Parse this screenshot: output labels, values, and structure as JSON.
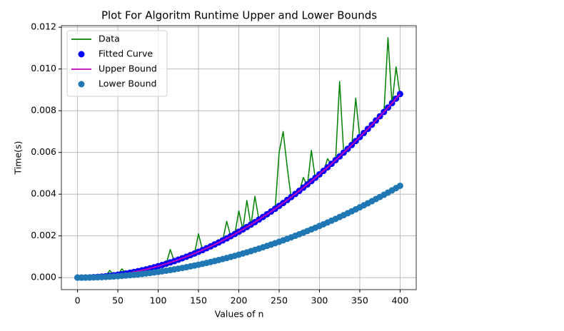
{
  "chart_data": {
    "type": "line",
    "title": "Plot For Algoritm Runtime Upper and Lower Bounds",
    "x_label": "Values of n",
    "y_label": "Time(s)",
    "x": [
      0,
      5,
      10,
      15,
      20,
      25,
      30,
      35,
      40,
      45,
      50,
      55,
      60,
      65,
      70,
      75,
      80,
      85,
      90,
      95,
      100,
      105,
      110,
      115,
      120,
      125,
      130,
      135,
      140,
      145,
      150,
      155,
      160,
      165,
      170,
      175,
      180,
      185,
      190,
      195,
      200,
      205,
      210,
      215,
      220,
      225,
      230,
      235,
      240,
      245,
      250,
      255,
      260,
      265,
      270,
      275,
      280,
      285,
      290,
      295,
      300,
      305,
      310,
      315,
      320,
      325,
      330,
      335,
      340,
      345,
      350,
      355,
      360,
      365,
      370,
      375,
      380,
      385,
      390,
      395,
      400
    ],
    "series": [
      {
        "name": "Data",
        "color": "#008000",
        "mode": "line",
        "values": [
          0,
          1e-06,
          6e-06,
          1.2e-05,
          2.2e-05,
          3.4e-05,
          5e-05,
          7e-05,
          0.00035,
          0.00011,
          0.00014,
          0.00042,
          0.0002,
          0.00023,
          0.00027,
          0.00031,
          0.00035,
          0.0004,
          0.00044,
          0.0005,
          0.00055,
          0.0006,
          0.00066,
          0.00135,
          0.00079,
          0.00085,
          0.00092,
          0.001,
          0.00107,
          0.00115,
          0.0021,
          0.00131,
          0.0014,
          0.00148,
          0.00158,
          0.00167,
          0.00177,
          0.0027,
          0.00197,
          0.00207,
          0.0032,
          0.0023,
          0.0037,
          0.0025,
          0.0039,
          0.00275,
          0.00288,
          0.003,
          0.00314,
          0.00327,
          0.006,
          0.007,
          0.0053,
          0.0038,
          0.00396,
          0.0041,
          0.0048,
          0.0044,
          0.0061,
          0.0047,
          0.0049,
          0.00505,
          0.0057,
          0.0054,
          0.0056,
          0.0094,
          0.006,
          0.0062,
          0.0063,
          0.0086,
          0.0067,
          0.0069,
          0.0071,
          0.0073,
          0.0075,
          0.0077,
          0.0079,
          0.0115,
          0.0083,
          0.0101,
          0.0087
        ]
      },
      {
        "name": "Fitted Curve",
        "color": "#0000ff",
        "mode": "marker",
        "values": [
          0,
          1e-06,
          6e-06,
          1.2e-05,
          2.2e-05,
          3.4e-05,
          5e-05,
          6.7e-05,
          8.8e-05,
          0.000111,
          0.000138,
          0.000166,
          0.000198,
          0.000232,
          0.00027,
          0.000309,
          0.000352,
          0.000397,
          0.000446,
          0.000496,
          0.00055,
          0.000606,
          0.000666,
          0.000727,
          0.000792,
          0.000859,
          0.00093,
          0.001002,
          0.001078,
          0.001156,
          0.001238,
          0.001321,
          0.001408,
          0.001497,
          0.00159,
          0.001684,
          0.001782,
          0.001882,
          0.001986,
          0.002091,
          0.0022,
          0.002311,
          0.002426,
          0.002542,
          0.002662,
          0.002784,
          0.00291,
          0.003037,
          0.003168,
          0.003301,
          0.003438,
          0.003576,
          0.003718,
          0.003862,
          0.00401,
          0.004159,
          0.004312,
          0.004467,
          0.004626,
          0.004786,
          0.00495,
          0.005116,
          0.005286,
          0.005457,
          0.005632,
          0.005809,
          0.00599,
          0.006172,
          0.006358,
          0.006546,
          0.006738,
          0.006931,
          0.007128,
          0.007327,
          0.00753,
          0.007734,
          0.007942,
          0.008152,
          0.008366,
          0.008581,
          0.0088
        ]
      },
      {
        "name": "Upper Bound",
        "color": "#bf00bf",
        "mode": "line",
        "values": [
          0,
          1e-06,
          6e-06,
          1.2e-05,
          2.2e-05,
          3.4e-05,
          5e-05,
          6.7e-05,
          8.8e-05,
          0.000111,
          0.000138,
          0.000166,
          0.000198,
          0.000232,
          0.00027,
          0.000309,
          0.000352,
          0.000397,
          0.000446,
          0.000496,
          0.00055,
          0.000606,
          0.000666,
          0.000727,
          0.000792,
          0.000859,
          0.00093,
          0.001002,
          0.001078,
          0.001156,
          0.001238,
          0.001321,
          0.001408,
          0.001497,
          0.00159,
          0.001684,
          0.001782,
          0.001882,
          0.001986,
          0.002091,
          0.0022,
          0.002311,
          0.002426,
          0.002542,
          0.002662,
          0.002784,
          0.00291,
          0.003037,
          0.003168,
          0.003301,
          0.003438,
          0.003576,
          0.003718,
          0.003862,
          0.00401,
          0.004159,
          0.004312,
          0.004467,
          0.004626,
          0.004786,
          0.00495,
          0.005116,
          0.005286,
          0.005457,
          0.005632,
          0.005809,
          0.00599,
          0.006172,
          0.006358,
          0.006546,
          0.006738,
          0.006931,
          0.007128,
          0.007327,
          0.00753,
          0.007734,
          0.007942,
          0.008152,
          0.008366,
          0.008581,
          0.0088
        ]
      },
      {
        "name": "Lower Bound",
        "color": "#1f77b4",
        "mode": "marker",
        "values": [
          0,
          1e-06,
          3e-06,
          6e-06,
          1.1e-05,
          1.7e-05,
          2.5e-05,
          3.4e-05,
          4.4e-05,
          5.6e-05,
          6.9e-05,
          8.3e-05,
          9.9e-05,
          0.000116,
          0.000135,
          0.000155,
          0.000176,
          0.000199,
          0.000223,
          0.000248,
          0.000275,
          0.000303,
          0.000333,
          0.000364,
          0.000396,
          0.00043,
          0.000465,
          0.000501,
          0.000539,
          0.000578,
          0.000619,
          0.000661,
          0.000704,
          0.000749,
          0.000795,
          0.000842,
          0.000891,
          0.000941,
          0.000993,
          0.001046,
          0.0011,
          0.001156,
          0.001213,
          0.001271,
          0.001331,
          0.001392,
          0.001455,
          0.001519,
          0.001584,
          0.001651,
          0.001719,
          0.001788,
          0.001859,
          0.001931,
          0.002005,
          0.00208,
          0.002156,
          0.002234,
          0.002313,
          0.002393,
          0.002475,
          0.002558,
          0.002643,
          0.002729,
          0.002816,
          0.002905,
          0.002995,
          0.003086,
          0.003179,
          0.003273,
          0.003369,
          0.003466,
          0.003564,
          0.003664,
          0.003765,
          0.003867,
          0.003971,
          0.004076,
          0.004183,
          0.004291,
          0.0044
        ]
      }
    ],
    "xlim": [
      -20,
      420
    ],
    "xticks": [
      0,
      50,
      100,
      150,
      200,
      250,
      300,
      350,
      400
    ],
    "ylim": [
      -0.000575,
      0.012075
    ],
    "yticks": [
      {
        "value": 0,
        "label": "0.000"
      },
      {
        "value": 0.002,
        "label": "0.002"
      },
      {
        "value": 0.004,
        "label": "0.004"
      },
      {
        "value": 0.006,
        "label": "0.006"
      },
      {
        "value": 0.008,
        "label": "0.008"
      },
      {
        "value": 0.01,
        "label": "0.010"
      },
      {
        "value": 0.012,
        "label": "0.012"
      }
    ],
    "grid": true,
    "legend": "upper left"
  }
}
